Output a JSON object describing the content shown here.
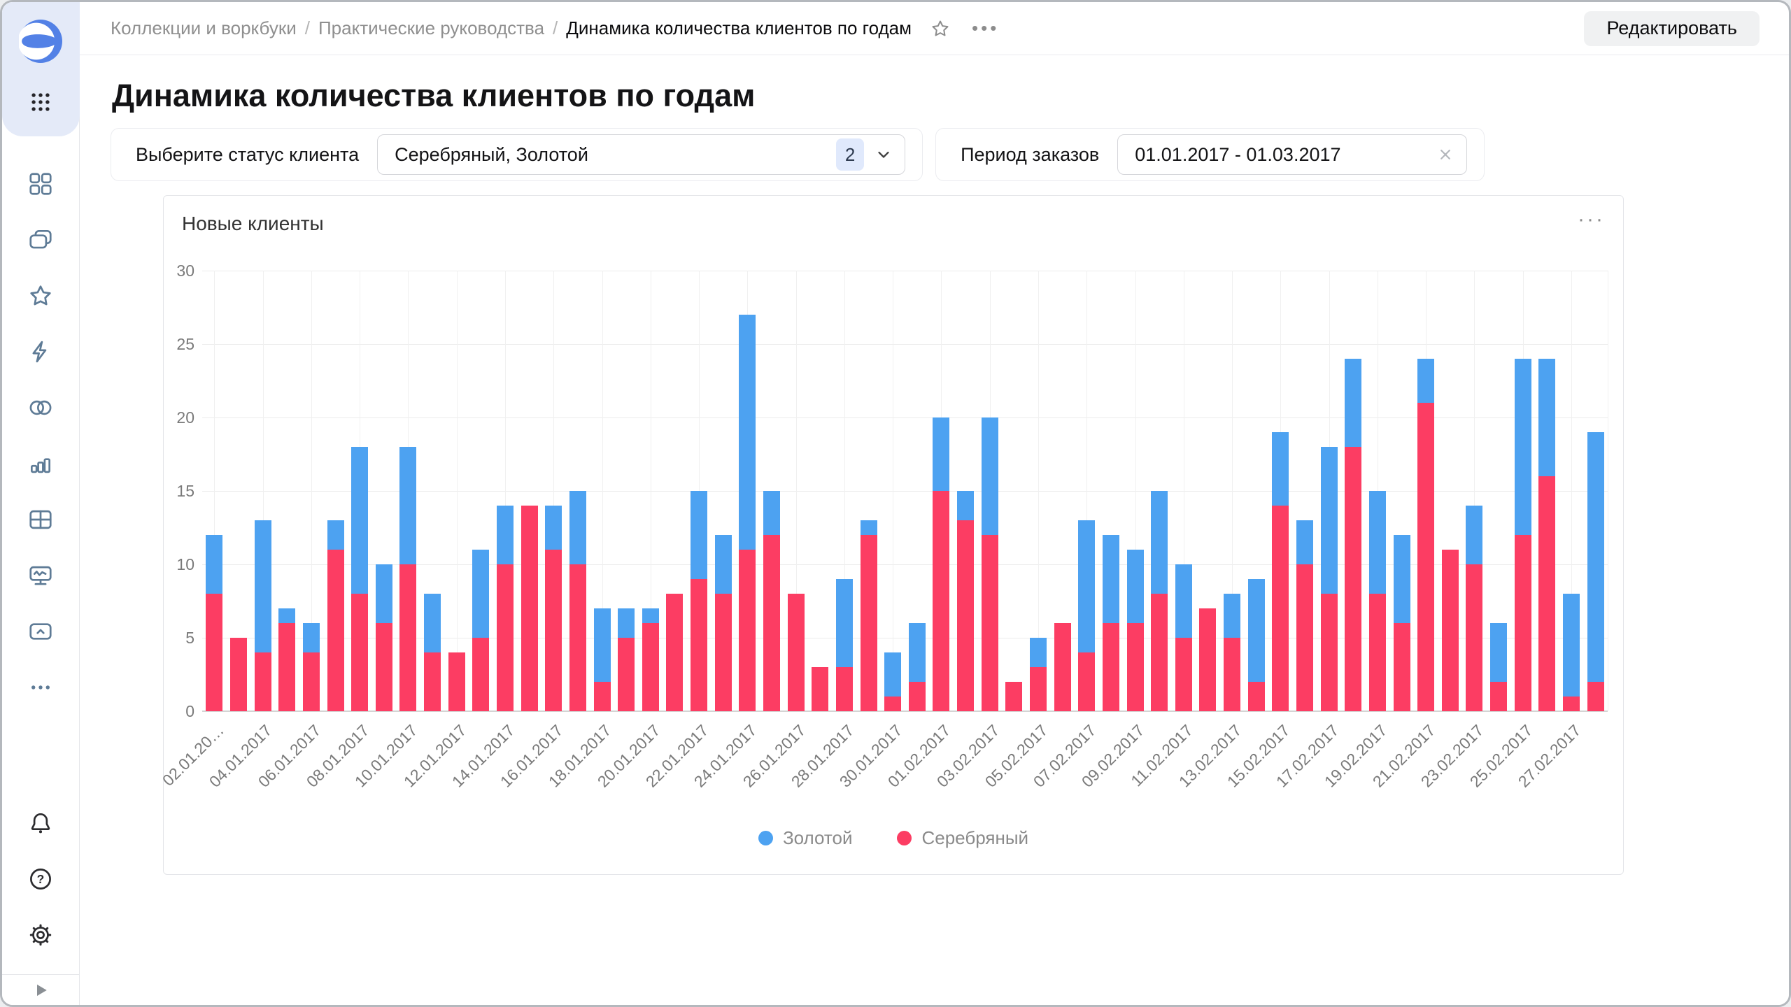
{
  "header": {
    "breadcrumb": [
      "Коллекции и воркбуки",
      "Практические руководства",
      "Динамика количества клиентов по годам"
    ],
    "separator": "/",
    "star_icon": "star-outline",
    "more_icon": "ellipsis-dots",
    "edit_button": "Редактировать"
  },
  "page": {
    "title": "Динамика количества клиентов по годам"
  },
  "filters": {
    "status": {
      "label": "Выберите статус клиента",
      "value": "Серебряный, Золотой",
      "count_badge": "2",
      "chevron_icon": "chevron-down"
    },
    "period": {
      "label": "Период заказов",
      "value": "01.01.2017 - 01.03.2017",
      "clear_icon": "close-x"
    }
  },
  "chart_card": {
    "title": "Новые клиенты",
    "menu_dots": "···"
  },
  "sidebar": {
    "logo": "datalens-logo",
    "top_icons": [
      "apps-grid-dots"
    ],
    "nav_icons": [
      "layout-squares",
      "collections",
      "favorites-star",
      "lightning",
      "datasets-circles",
      "bar-chart",
      "table-grid",
      "monitor-pulse",
      "storage-box",
      "more-dots"
    ],
    "footer_icons": [
      "bell",
      "help-circle",
      "settings-gear"
    ],
    "expand_icon": "play-arrow"
  },
  "chart_data": {
    "type": "bar",
    "stacked": true,
    "title": "Новые клиенты",
    "ylim": [
      0,
      30
    ],
    "yticks": [
      0,
      5,
      10,
      15,
      20,
      25,
      30
    ],
    "grid": true,
    "legend_position": "bottom",
    "x": [
      "02.01.2017",
      "03.01.2017",
      "04.01.2017",
      "05.01.2017",
      "06.01.2017",
      "07.01.2017",
      "08.01.2017",
      "09.01.2017",
      "10.01.2017",
      "11.01.2017",
      "12.01.2017",
      "13.01.2017",
      "14.01.2017",
      "15.01.2017",
      "16.01.2017",
      "17.01.2017",
      "18.01.2017",
      "19.01.2017",
      "20.01.2017",
      "21.01.2017",
      "22.01.2017",
      "23.01.2017",
      "24.01.2017",
      "25.01.2017",
      "26.01.2017",
      "27.01.2017",
      "28.01.2017",
      "29.01.2017",
      "30.01.2017",
      "31.01.2017",
      "01.02.2017",
      "02.02.2017",
      "03.02.2017",
      "04.02.2017",
      "05.02.2017",
      "06.02.2017",
      "07.02.2017",
      "08.02.2017",
      "09.02.2017",
      "10.02.2017",
      "11.02.2017",
      "12.02.2017",
      "13.02.2017",
      "14.02.2017",
      "15.02.2017",
      "16.02.2017",
      "17.02.2017",
      "18.02.2017",
      "19.02.2017",
      "20.02.2017",
      "21.02.2017",
      "22.02.2017",
      "23.02.2017",
      "24.02.2017",
      "25.02.2017",
      "26.02.2017",
      "27.02.2017",
      "28.02.2017"
    ],
    "x_tick_labels": [
      "02.01.20…",
      "04.01.2017",
      "06.01.2017",
      "08.01.2017",
      "10.01.2017",
      "12.01.2017",
      "14.01.2017",
      "16.01.2017",
      "18.01.2017",
      "20.01.2017",
      "22.01.2017",
      "24.01.2017",
      "26.01.2017",
      "28.01.2017",
      "30.01.2017",
      "01.02.2017",
      "03.02.2017",
      "05.02.2017",
      "07.02.2017",
      "09.02.2017",
      "11.02.2017",
      "13.02.2017",
      "15.02.2017",
      "17.02.2017",
      "19.02.2017",
      "21.02.2017",
      "23.02.2017",
      "25.02.2017",
      "27.02.2017"
    ],
    "series": [
      {
        "name": "Золотой",
        "color": "#4da2f1",
        "values": [
          4,
          0,
          9,
          1,
          2,
          2,
          10,
          4,
          8,
          4,
          0,
          6,
          4,
          0,
          3,
          5,
          5,
          2,
          1,
          0,
          6,
          4,
          16,
          3,
          0,
          0,
          6,
          1,
          3,
          4,
          5,
          2,
          8,
          0,
          2,
          0,
          9,
          6,
          5,
          7,
          5,
          0,
          3,
          7,
          5,
          3,
          10,
          6,
          7,
          6,
          3,
          0,
          4,
          4,
          12,
          8,
          7,
          17
        ]
      },
      {
        "name": "Серебряный",
        "color": "#fc3d63",
        "values": [
          8,
          5,
          4,
          6,
          4,
          11,
          8,
          6,
          10,
          4,
          4,
          5,
          10,
          14,
          11,
          10,
          2,
          5,
          6,
          8,
          9,
          8,
          11,
          12,
          8,
          3,
          3,
          12,
          1,
          2,
          15,
          13,
          12,
          2,
          3,
          6,
          4,
          6,
          6,
          8,
          5,
          7,
          5,
          2,
          14,
          10,
          8,
          18,
          8,
          6,
          21,
          11,
          10,
          2,
          12,
          16,
          1,
          2
        ]
      }
    ],
    "stack_order_bottom_to_top": [
      "Серебряный",
      "Золотой"
    ]
  }
}
